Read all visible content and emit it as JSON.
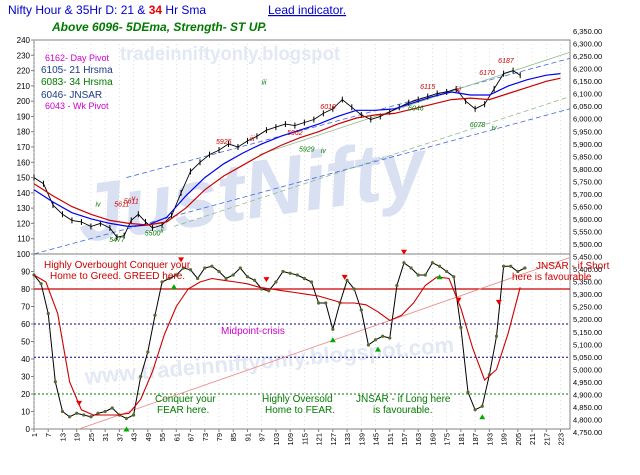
{
  "header": {
    "title_prefix": "Nifty Hour & 35Hr D: 21 & ",
    "title_red": "34",
    "title_suffix": " Hr Sma",
    "title_link": "Lead indicator.",
    "subtitle": "Above 6096-  5DEma,  Strength- ST UP."
  },
  "watermark": {
    "main": "JustNifty",
    "top_url": "tradeinniftyonly.blogspot",
    "bottom_url": "www.tradeinniftyonly.blogspot.com"
  },
  "legend": [
    {
      "text": "6162- Day Pivot",
      "color": "#cc00cc"
    },
    {
      "text": "6105- 21 Hrsma",
      "color": "#1a3a8a"
    },
    {
      "text": "6083- 34 Hrsma",
      "color": "#007a00"
    },
    {
      "text": "6046- JNSAR",
      "color": "#1a3a8a"
    },
    {
      "text": "6043 - Wk Pivot",
      "color": "#cc00cc"
    }
  ],
  "annotations": [
    {
      "text": "Highly Overbought Conquer your",
      "color": "#cc0000"
    },
    {
      "text": "Home to Greed.  GREED here.",
      "color": "#cc0000"
    },
    {
      "text": "Midpoint-crisis",
      "color": "#cc00cc"
    },
    {
      "text": "Conquer your",
      "color": "#007a00"
    },
    {
      "text": "FEAR here.",
      "color": "#007a00"
    },
    {
      "text": "Highly Oversold",
      "color": "#007a00"
    },
    {
      "text": "Home to FEAR.",
      "color": "#007a00"
    },
    {
      "text": "JNSAR - if Long here",
      "color": "#007a00"
    },
    {
      "text": "is favourable.",
      "color": "#007a00"
    },
    {
      "text": "JNSAR - if Short",
      "color": "#cc0000"
    },
    {
      "text": "here is favourable",
      "color": "#cc0000"
    }
  ],
  "chart_data": {
    "type": "line",
    "x_tick_labels": [
      "1",
      "7",
      "13",
      "19",
      "25",
      "31",
      "37",
      "43",
      "49",
      "55",
      "61",
      "67",
      "73",
      "79",
      "85",
      "91",
      "97",
      "103",
      "109",
      "115",
      "121",
      "127",
      "133",
      "139",
      "145",
      "151",
      "157",
      "163",
      "169",
      "175",
      "181",
      "187",
      "193",
      "199",
      "205",
      "211",
      "217",
      "223"
    ],
    "xlim": [
      1,
      227
    ],
    "top_panel": {
      "left_axis": {
        "ylim": [
          100,
          240
        ],
        "ticks": [
          100,
          110,
          120,
          130,
          140,
          150,
          160,
          170,
          180,
          190,
          200,
          210,
          220,
          230,
          240
        ]
      },
      "series": [
        {
          "role": "price",
          "color": "#000000",
          "x": [
            1,
            5,
            9,
            13,
            17,
            21,
            25,
            29,
            33,
            36,
            39,
            42,
            45,
            48,
            51,
            55,
            59,
            63,
            67,
            71,
            75,
            79,
            83,
            87,
            91,
            95,
            99,
            103,
            107,
            111,
            115,
            119,
            123,
            127,
            131,
            135,
            139,
            143,
            147,
            151,
            155,
            159,
            163,
            167,
            171,
            175,
            179,
            183,
            187,
            191,
            195,
            199,
            203,
            206
          ],
          "y": [
            150,
            146,
            132,
            126,
            122,
            121,
            118,
            120,
            117,
            111,
            112,
            122,
            126,
            121,
            117,
            119,
            125,
            140,
            154,
            160,
            165,
            168,
            172,
            170,
            174,
            177,
            181,
            183,
            185,
            184,
            186,
            188,
            192,
            195,
            201,
            196,
            191,
            188,
            190,
            193,
            196,
            199,
            201,
            203,
            205,
            206,
            208,
            200,
            195,
            198,
            208,
            218,
            220,
            217
          ]
        },
        {
          "role": "21-hr sma",
          "color": "#0000ee",
          "x": [
            1,
            9,
            17,
            25,
            33,
            41,
            49,
            57,
            65,
            73,
            81,
            89,
            97,
            105,
            113,
            121,
            129,
            137,
            145,
            153,
            161,
            169,
            177,
            185,
            193,
            201,
            209,
            217,
            223
          ],
          "y": [
            142,
            134,
            127,
            123,
            120,
            118,
            119,
            124,
            138,
            150,
            159,
            166,
            172,
            177,
            181,
            185,
            190,
            194,
            194,
            195,
            199,
            203,
            206,
            204,
            204,
            210,
            214,
            217,
            218
          ]
        },
        {
          "role": "34-hr sma",
          "color": "#cc0000",
          "x": [
            1,
            9,
            17,
            25,
            33,
            41,
            49,
            57,
            65,
            73,
            81,
            89,
            97,
            105,
            113,
            121,
            129,
            137,
            145,
            153,
            161,
            169,
            177,
            185,
            193,
            201,
            209,
            217,
            223
          ],
          "y": [
            146,
            138,
            131,
            126,
            122,
            120,
            119,
            121,
            130,
            142,
            151,
            158,
            165,
            171,
            176,
            180,
            185,
            189,
            191,
            192,
            195,
            198,
            201,
            202,
            201,
            205,
            209,
            213,
            215
          ]
        }
      ],
      "price_labels": [
        {
          "text": "5477",
          "x": 36,
          "y": 108,
          "color": "#007a00"
        },
        {
          "text": "5500",
          "x": 51,
          "y": 112,
          "color": "#007a00"
        },
        {
          "text": "5611",
          "x": 38,
          "y": 131,
          "color": "#cc0000"
        },
        {
          "text": "5611",
          "x": 42,
          "y": 133,
          "color": "#cc0000"
        },
        {
          "text": "5925",
          "x": 81,
          "y": 172,
          "color": "#cc0000"
        },
        {
          "text": "5962",
          "x": 111,
          "y": 178,
          "color": "#cc0000"
        },
        {
          "text": "5929",
          "x": 116,
          "y": 167,
          "color": "#007a00"
        },
        {
          "text": "6019",
          "x": 125,
          "y": 195,
          "color": "#cc0000"
        },
        {
          "text": "6115",
          "x": 167,
          "y": 208,
          "color": "#cc0000"
        },
        {
          "text": "6046",
          "x": 162,
          "y": 194,
          "color": "#007a00"
        },
        {
          "text": "6170",
          "x": 192,
          "y": 217,
          "color": "#cc0000"
        },
        {
          "text": "6187",
          "x": 200,
          "y": 225,
          "color": "#cc0000"
        },
        {
          "text": "6078",
          "x": 188,
          "y": 183,
          "color": "#007a00"
        }
      ],
      "wave_labels": [
        {
          "text": "iii",
          "x": 98,
          "y": 211,
          "color": "#007a00"
        },
        {
          "text": "iv",
          "x": 28,
          "y": 131,
          "color": "#007a00"
        },
        {
          "text": "v",
          "x": 43,
          "y": 135,
          "color": "#cc0000"
        },
        {
          "text": "ii",
          "x": 55,
          "y": 114,
          "color": "#007a00"
        },
        {
          "text": "iii",
          "x": 93,
          "y": 174,
          "color": "#cc0000"
        },
        {
          "text": "iv",
          "x": 123,
          "y": 166,
          "color": "#007a00"
        },
        {
          "text": "iii",
          "x": 180,
          "y": 206,
          "color": "#cc0000"
        },
        {
          "text": "iv",
          "x": 195,
          "y": 181,
          "color": "#007a00"
        }
      ]
    },
    "bottom_panel": {
      "left_axis": {
        "ylim": [
          0,
          100
        ],
        "ticks": [
          0,
          10,
          20,
          30,
          40,
          50,
          60,
          70,
          80,
          90,
          100
        ]
      },
      "series": [
        {
          "role": "oscillator",
          "color": "#000000",
          "x": [
            1,
            4,
            7,
            10,
            13,
            16,
            19,
            22,
            25,
            28,
            31,
            34,
            37,
            40,
            43,
            46,
            49,
            52,
            55,
            58,
            61,
            64,
            67,
            70,
            73,
            76,
            79,
            82,
            85,
            88,
            91,
            94,
            97,
            100,
            103,
            106,
            109,
            112,
            115,
            118,
            121,
            124,
            127,
            130,
            133,
            136,
            139,
            142,
            145,
            148,
            151,
            154,
            157,
            160,
            163,
            166,
            169,
            172,
            175,
            178,
            181,
            184,
            187,
            190,
            193,
            196,
            199,
            202,
            205,
            208
          ],
          "y": [
            88,
            83,
            66,
            27,
            10,
            7,
            9,
            8,
            7,
            9,
            10,
            12,
            8,
            6,
            8,
            30,
            44,
            65,
            84,
            86,
            88,
            92,
            91,
            86,
            92,
            93,
            90,
            86,
            88,
            92,
            87,
            85,
            80,
            79,
            84,
            90,
            89,
            88,
            86,
            84,
            72,
            72,
            57,
            72,
            85,
            80,
            68,
            48,
            51,
            53,
            52,
            82,
            95,
            92,
            88,
            88,
            95,
            93,
            90,
            87,
            58,
            21,
            11,
            13,
            31,
            53,
            93,
            93,
            90,
            92
          ]
        },
        {
          "role": "signal",
          "color": "#cc0000",
          "x": [
            1,
            6,
            11,
            16,
            21,
            26,
            31,
            36,
            41,
            46,
            51,
            56,
            61,
            66,
            71,
            76,
            81,
            86,
            91,
            96,
            101,
            106,
            111,
            116,
            121,
            126,
            131,
            136,
            141,
            146,
            151,
            156,
            161,
            166,
            171,
            176,
            181,
            186,
            191,
            196,
            201,
            206
          ],
          "y": [
            88,
            84,
            66,
            27,
            11,
            8,
            8,
            8,
            9,
            17,
            33,
            54,
            70,
            80,
            84,
            86,
            85,
            84,
            83,
            81,
            80,
            79,
            78,
            77,
            76,
            74,
            72,
            72,
            71,
            67,
            62,
            65,
            72,
            82,
            87,
            86,
            69,
            46,
            28,
            34,
            55,
            81
          ]
        }
      ],
      "reference_lines": [
        {
          "value": 80,
          "color": "#cc0000",
          "style": "solid"
        },
        {
          "value": 60,
          "color": "#000080",
          "style": "dotted"
        },
        {
          "value": 41,
          "color": "#000080",
          "style": "dotted"
        },
        {
          "value": 20,
          "color": "#007a00",
          "style": "dotted"
        }
      ]
    },
    "right_axis": {
      "ticks": [
        "4,750.00",
        "4,800.00",
        "4,850.00",
        "4,900.00",
        "4,950.00",
        "5,000.00",
        "5,050.00",
        "5,100.00",
        "5,150.00",
        "5,200.00",
        "5,250.00",
        "5,300.00",
        "5,350.00",
        "5,400.00",
        "5,450.00",
        "5,500.00",
        "5,550.00",
        "5,600.00",
        "5,650.00",
        "5,700.00",
        "5,750.00",
        "5,800.00",
        "5,850.00",
        "5,900.00",
        "5,950.00",
        "6,000.00",
        "6,050.00",
        "6,100.00",
        "6,150.00",
        "6,200.00",
        "6,250.00",
        "6,300.00",
        "6,350.00"
      ]
    },
    "markers": {
      "red": [
        20,
        63,
        99,
        132,
        157,
        180,
        197
      ],
      "green": [
        40,
        60,
        127,
        146,
        172,
        190
      ]
    }
  }
}
